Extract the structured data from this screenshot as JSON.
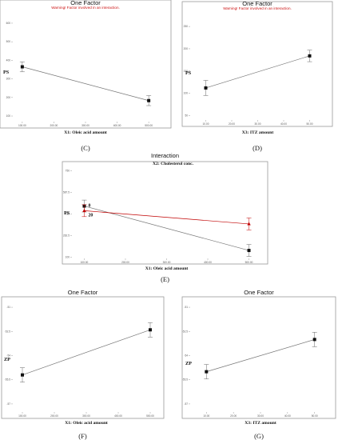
{
  "colors": {
    "black_series": "#111111",
    "red_series": "#c00000",
    "line": "#777777",
    "frame": "#9a9a9a"
  },
  "chart_data": [
    {
      "type": "line",
      "caption": "(C)",
      "title": "One Factor",
      "warning": "Warning! Factor involved in an interaction.",
      "xlabel": "X1: Oleic acid amount",
      "ylabel": "PS",
      "x_ticks": [
        "100.00",
        "200.00",
        "300.00",
        "400.00",
        "500.00"
      ],
      "y_ticks": [
        "100",
        "200",
        "300",
        "400",
        "500",
        "600"
      ],
      "xlim": [
        70,
        530
      ],
      "ylim": [
        70,
        630
      ],
      "series": [
        {
          "x": [
            100,
            500
          ],
          "y": [
            365,
            183
          ],
          "err": [
            27,
            27
          ],
          "color": "#111111",
          "marker": "square"
        }
      ]
    },
    {
      "type": "line",
      "caption": "(D)",
      "title": "One Factor",
      "warning": "Warning! Factor involved in an interaction.",
      "xlabel": "X3: ITZ amount",
      "ylabel": "PS",
      "x_ticks": [
        "10.00",
        "20.00",
        "30.00",
        "40.00",
        "50.00"
      ],
      "y_ticks": [
        "50",
        "100",
        "150",
        "200",
        "250"
      ],
      "xlim": [
        4,
        56
      ],
      "ylim": [
        40,
        270
      ],
      "series": [
        {
          "x": [
            10,
            50
          ],
          "y": [
            112,
            184
          ],
          "err": [
            17,
            13
          ],
          "color": "#111111",
          "marker": "square"
        }
      ]
    },
    {
      "type": "line",
      "caption": "(E)",
      "title": "Interaction",
      "subtitle": "X2: Cholesterol conc.",
      "xlabel": "X1: Oleic acid amount",
      "ylabel": "PS",
      "x_ticks": [
        "100.00",
        "200.00",
        "300.00",
        "400.00",
        "500.00"
      ],
      "y_ticks": [
        "100",
        "262.5",
        "425",
        "587.5",
        "750"
      ],
      "xlim": [
        70,
        530
      ],
      "ylim": [
        90,
        760
      ],
      "series": [
        {
          "name": "0",
          "x": [
            100,
            500
          ],
          "y": [
            485,
            150
          ],
          "err": [
            45,
            45
          ],
          "color": "#111111",
          "marker": "square"
        },
        {
          "name": "20",
          "x": [
            100,
            500
          ],
          "y": [
            450,
            350
          ],
          "err": [
            45,
            45
          ],
          "color": "#c00000",
          "marker": "triangle"
        }
      ]
    },
    {
      "type": "line",
      "caption": "(F)",
      "title": "One Factor",
      "xlabel": "X1: Oleic acid amount",
      "ylabel": "ZP",
      "x_ticks": [
        "100.00",
        "200.00",
        "300.00",
        "400.00",
        "500.00"
      ],
      "y_ticks": [
        "-51",
        "-52.5",
        "-54",
        "-55.5",
        "-57"
      ],
      "xlim": [
        70,
        530
      ],
      "ylim": [
        -57.5,
        -50.5
      ],
      "series": [
        {
          "x": [
            100,
            500
          ],
          "y": [
            -55.2,
            -52.4
          ],
          "err": [
            0.45,
            0.45
          ],
          "color": "#111111",
          "marker": "square"
        }
      ]
    },
    {
      "type": "line",
      "caption": "(G)",
      "title": "One Factor",
      "xlabel": "X3: ITZ amount",
      "ylabel": "ZP",
      "x_ticks": [
        "10.00",
        "20.00",
        "30.00",
        "40.00",
        "50.00"
      ],
      "y_ticks": [
        "-51",
        "-52.5",
        "-54",
        "-55.5",
        "-57"
      ],
      "xlim": [
        4,
        56
      ],
      "ylim": [
        -57.5,
        -50.5
      ],
      "series": [
        {
          "x": [
            10,
            50
          ],
          "y": [
            -55.0,
            -53.0
          ],
          "err": [
            0.45,
            0.45
          ],
          "color": "#111111",
          "marker": "square"
        }
      ]
    }
  ]
}
